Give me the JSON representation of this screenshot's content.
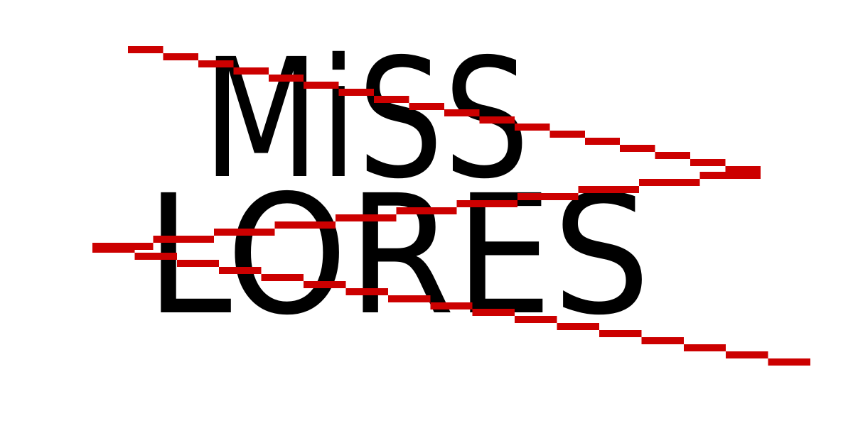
{
  "logo": {
    "line1": "MiSS",
    "line2": "LORES"
  }
}
